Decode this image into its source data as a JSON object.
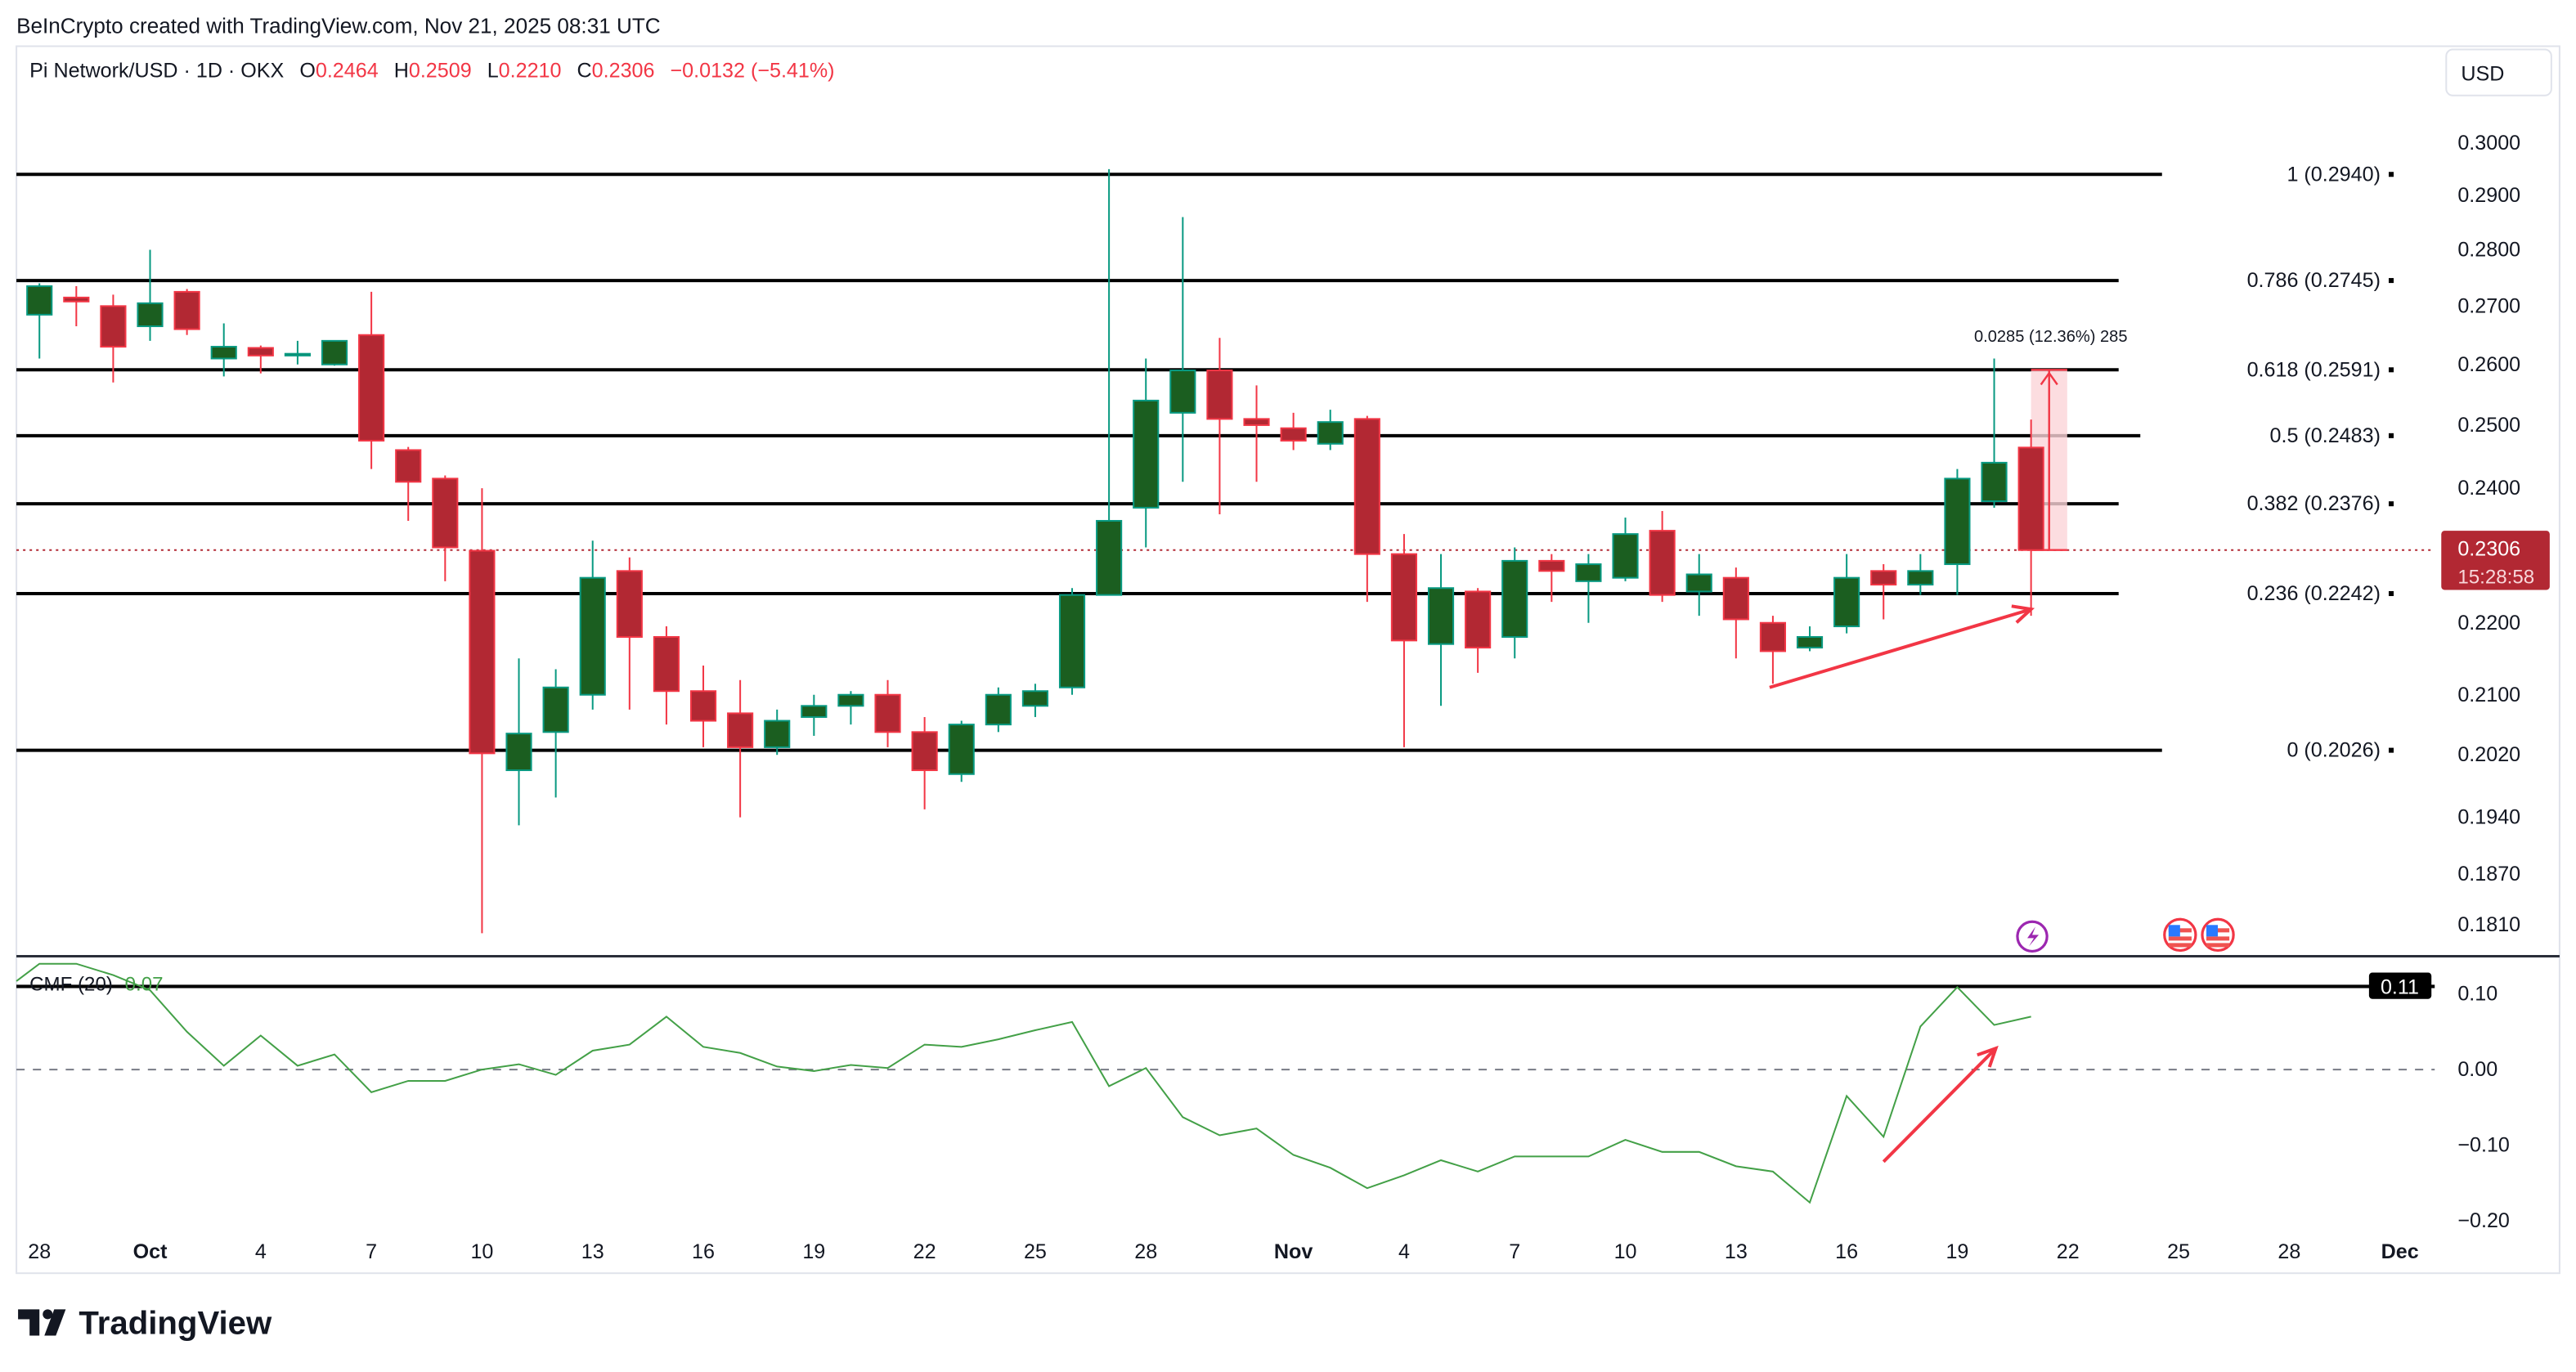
{
  "header": {
    "credit": "BeInCrypto created with TradingView.com, Nov 21, 2025 08:31 UTC",
    "symbol": "Pi Network/USD · 1D · OKX",
    "o_label": "O",
    "o": "0.2464",
    "h_label": "H",
    "h": "0.2509",
    "l_label": "L",
    "l": "0.2210",
    "c_label": "C",
    "c": "0.2306",
    "change": "−0.0132 (−5.41%)",
    "currency_button": "USD"
  },
  "price_badge": {
    "price": "0.2306",
    "countdown": "15:28:58"
  },
  "measure_label": "0.0285 (12.36%) 285",
  "cmf": {
    "legend": "CMF (20)",
    "value": "0.07",
    "badge": "0.11"
  },
  "logo": "TradingView",
  "colors": {
    "up": "#1b5e20",
    "up_border": "#089981",
    "down": "#b22833",
    "down_border": "#f23645",
    "cmf_line": "#43a047",
    "annotation": "#f23645",
    "measure_fill": "#fbd5d8"
  },
  "icons": [
    "lightning-event-icon",
    "us-flag-event-icon",
    "us-flag-event-icon"
  ],
  "chart_data": [
    {
      "type": "candlestick",
      "title": "Pi Network/USD · 1D · OKX",
      "y_scale": "log",
      "ylim": [
        0.178,
        0.303
      ],
      "y_ticks": [
        "0.3000",
        "0.2900",
        "0.2800",
        "0.2700",
        "0.2600",
        "0.2500",
        "0.2400",
        "0.2200",
        "0.2100",
        "0.2020",
        "0.1940",
        "0.1870",
        "0.1810"
      ],
      "x_ticks": [
        {
          "date": "2025-09-28",
          "label": "28",
          "bold": false
        },
        {
          "date": "2025-10-01",
          "label": "Oct",
          "bold": true
        },
        {
          "date": "2025-10-04",
          "label": "4",
          "bold": false
        },
        {
          "date": "2025-10-07",
          "label": "7",
          "bold": false
        },
        {
          "date": "2025-10-10",
          "label": "10",
          "bold": false
        },
        {
          "date": "2025-10-13",
          "label": "13",
          "bold": false
        },
        {
          "date": "2025-10-16",
          "label": "16",
          "bold": false
        },
        {
          "date": "2025-10-19",
          "label": "19",
          "bold": false
        },
        {
          "date": "2025-10-22",
          "label": "22",
          "bold": false
        },
        {
          "date": "2025-10-25",
          "label": "25",
          "bold": false
        },
        {
          "date": "2025-10-28",
          "label": "28",
          "bold": false
        },
        {
          "date": "2025-11-01",
          "label": "Nov",
          "bold": true
        },
        {
          "date": "2025-11-04",
          "label": "4",
          "bold": false
        },
        {
          "date": "2025-11-07",
          "label": "7",
          "bold": false
        },
        {
          "date": "2025-11-10",
          "label": "10",
          "bold": false
        },
        {
          "date": "2025-11-13",
          "label": "13",
          "bold": false
        },
        {
          "date": "2025-11-16",
          "label": "16",
          "bold": false
        },
        {
          "date": "2025-11-19",
          "label": "19",
          "bold": false
        },
        {
          "date": "2025-11-22",
          "label": "22",
          "bold": false
        },
        {
          "date": "2025-11-25",
          "label": "25",
          "bold": false
        },
        {
          "date": "2025-11-28",
          "label": "28",
          "bold": false
        },
        {
          "date": "2025-12-01",
          "label": "Dec",
          "bold": true
        }
      ],
      "start_date": "2025-09-28",
      "ohlc": [
        [
          0.2685,
          0.274,
          0.261,
          0.2735
        ],
        [
          0.2715,
          0.2735,
          0.2665,
          0.2708
        ],
        [
          0.27,
          0.272,
          0.257,
          0.263
        ],
        [
          0.2665,
          0.28,
          0.264,
          0.2705
        ],
        [
          0.2725,
          0.273,
          0.265,
          0.266
        ],
        [
          0.261,
          0.267,
          0.258,
          0.263
        ],
        [
          0.2628,
          0.2632,
          0.2585,
          0.2615
        ],
        [
          0.2615,
          0.264,
          0.26,
          0.2618
        ],
        [
          0.26,
          0.263,
          0.2598,
          0.264
        ],
        [
          0.265,
          0.2725,
          0.243,
          0.2475
        ],
        [
          0.246,
          0.2465,
          0.235,
          0.241
        ],
        [
          0.2415,
          0.242,
          0.226,
          0.231
        ],
        [
          0.2305,
          0.24,
          0.18,
          0.2022
        ],
        [
          0.2,
          0.215,
          0.193,
          0.2048
        ],
        [
          0.205,
          0.2135,
          0.1965,
          0.211
        ],
        [
          0.21,
          0.232,
          0.208,
          0.2265
        ],
        [
          0.2275,
          0.2295,
          0.208,
          0.218
        ],
        [
          0.218,
          0.2195,
          0.206,
          0.2105
        ],
        [
          0.2105,
          0.214,
          0.203,
          0.2065
        ],
        [
          0.2075,
          0.212,
          0.194,
          0.203
        ],
        [
          0.203,
          0.208,
          0.202,
          0.2065
        ],
        [
          0.207,
          0.21,
          0.2045,
          0.2085
        ],
        [
          0.2085,
          0.2105,
          0.206,
          0.21
        ],
        [
          0.21,
          0.212,
          0.203,
          0.205
        ],
        [
          0.205,
          0.207,
          0.195,
          0.2
        ],
        [
          0.1995,
          0.2065,
          0.1985,
          0.206
        ],
        [
          0.206,
          0.211,
          0.205,
          0.21
        ],
        [
          0.2085,
          0.2115,
          0.207,
          0.2105
        ],
        [
          0.211,
          0.225,
          0.21,
          0.224
        ],
        [
          0.224,
          0.295,
          0.224,
          0.235
        ],
        [
          0.237,
          0.261,
          0.231,
          0.254
        ],
        [
          0.252,
          0.286,
          0.241,
          0.259
        ],
        [
          0.259,
          0.2645,
          0.236,
          0.251
        ],
        [
          0.251,
          0.2565,
          0.241,
          0.25
        ],
        [
          0.2495,
          0.252,
          0.246,
          0.2475
        ],
        [
          0.247,
          0.2525,
          0.246,
          0.2505
        ],
        [
          0.251,
          0.2515,
          0.223,
          0.23
        ],
        [
          0.23,
          0.233,
          0.203,
          0.2175
        ],
        [
          0.217,
          0.23,
          0.2085,
          0.225
        ],
        [
          0.2245,
          0.225,
          0.213,
          0.2165
        ],
        [
          0.218,
          0.231,
          0.215,
          0.229
        ],
        [
          0.229,
          0.23,
          0.223,
          0.2275
        ],
        [
          0.226,
          0.23,
          0.22,
          0.2285
        ],
        [
          0.2265,
          0.2355,
          0.226,
          0.233
        ],
        [
          0.2335,
          0.2365,
          0.223,
          0.224
        ],
        [
          0.2245,
          0.23,
          0.221,
          0.227
        ],
        [
          0.2265,
          0.228,
          0.215,
          0.2205
        ],
        [
          0.22,
          0.221,
          0.2115,
          0.216
        ],
        [
          0.2165,
          0.2195,
          0.216,
          0.218
        ],
        [
          0.2195,
          0.23,
          0.2185,
          0.2265
        ],
        [
          0.2275,
          0.2285,
          0.2205,
          0.2255
        ],
        [
          0.2255,
          0.23,
          0.224,
          0.2275
        ],
        [
          0.2285,
          0.243,
          0.224,
          0.2415
        ],
        [
          0.238,
          0.261,
          0.237,
          0.244
        ],
        [
          0.2464,
          0.2509,
          0.221,
          0.2306
        ]
      ],
      "fib_levels": [
        {
          "label": "1 (0.2940)",
          "value": 0.294
        },
        {
          "label": "0.786 (0.2745)",
          "value": 0.2745
        },
        {
          "label": "0.618 (0.2591)",
          "value": 0.2591
        },
        {
          "label": "0.5 (0.2483)",
          "value": 0.2483
        },
        {
          "label": "0.382 (0.2376)",
          "value": 0.2376
        },
        {
          "label": "0.236 (0.2242)",
          "value": 0.2242
        },
        {
          "label": "0 (0.2026)",
          "value": 0.2026
        }
      ],
      "last_price": 0.2306,
      "measure": {
        "from": 0.2306,
        "to": 0.2591,
        "label": "0.0285 (12.36%) 285"
      },
      "trend_arrow": {
        "from": [
          "2025-11-14",
          0.211
        ],
        "to": [
          "2025-11-21",
          0.221
        ]
      }
    },
    {
      "type": "line",
      "title": "CMF (20)",
      "ylim": [
        -0.21,
        0.15
      ],
      "y_ticks": [
        "0.10",
        "0.00",
        "−0.10",
        "−0.20"
      ],
      "zero_line": "dashed",
      "horizontal_line": 0.11,
      "start_date": "2025-09-27",
      "values": [
        0.117,
        0.14,
        0.14,
        0.125,
        0.105,
        0.05,
        0.005,
        0.045,
        0.005,
        0.02,
        -0.03,
        -0.015,
        -0.015,
        0.0,
        0.007,
        -0.007,
        0.025,
        0.033,
        0.07,
        0.03,
        0.022,
        0.004,
        -0.002,
        0.006,
        0.002,
        0.033,
        0.03,
        0.04,
        0.052,
        0.063,
        -0.022,
        0.002,
        -0.063,
        -0.087,
        -0.078,
        -0.113,
        -0.13,
        -0.157,
        -0.14,
        -0.12,
        -0.135,
        -0.115,
        -0.115,
        -0.115,
        -0.093,
        -0.109,
        -0.109,
        -0.128,
        -0.135,
        -0.176,
        -0.035,
        -0.089,
        0.057,
        0.109,
        0.059,
        0.07
      ],
      "trend_arrow": {
        "from": [
          "2025-11-17",
          -0.122
        ],
        "to": [
          "2025-11-20",
          0.028
        ]
      }
    }
  ]
}
